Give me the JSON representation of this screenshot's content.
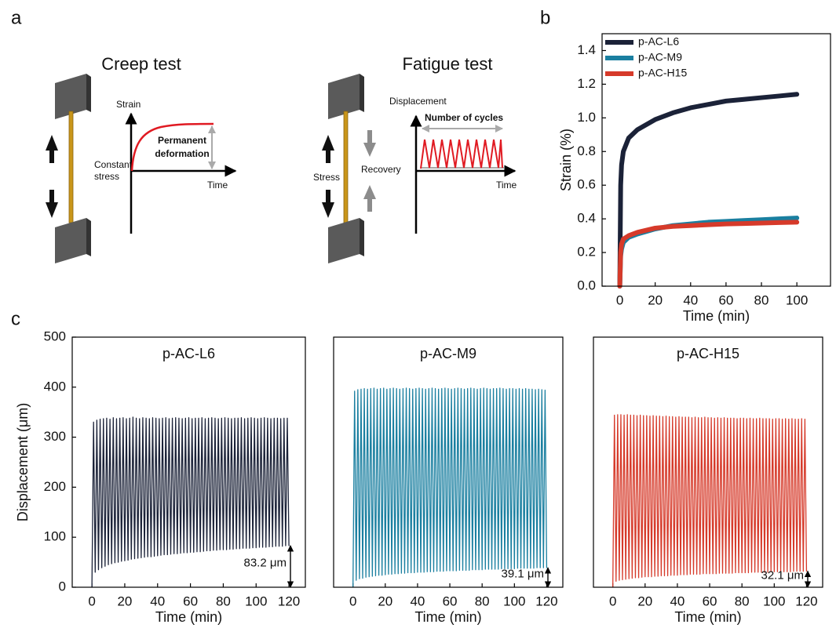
{
  "panel_labels": [
    "a",
    "b",
    "c"
  ],
  "diagram": {
    "creep": {
      "title": "Creep test",
      "y_label": "Strain",
      "x_label": "Time",
      "annotation": [
        "Permanent",
        "deformation"
      ],
      "stress": [
        "Constant",
        "stress"
      ]
    },
    "fatigue": {
      "title": "Fatigue test",
      "y_label": "Displacement",
      "x_label": "Time",
      "annotation": "Number of cycles",
      "stress": "Stress",
      "recovery": "Recovery"
    }
  },
  "chart_data": [
    {
      "type": "line",
      "x_label": "Time (min)",
      "y_label": "Strain (%)",
      "legend": "upper left",
      "xlim": [
        -10,
        119
      ],
      "xticks": [
        0,
        20,
        40,
        60,
        80,
        100
      ],
      "ylim": [
        0,
        1.5
      ],
      "yticks": [
        {
          "value": 0,
          "label": "0.0"
        },
        {
          "value": 0.2,
          "label": "0.2"
        },
        {
          "value": 0.4,
          "label": "0.4"
        },
        {
          "value": 0.6,
          "label": "0.6"
        },
        {
          "value": 0.8,
          "label": "0.8"
        },
        {
          "value": 1.0,
          "label": "1.0"
        },
        {
          "value": 1.2,
          "label": "1.2"
        },
        {
          "value": 1.4,
          "label": "1.4"
        }
      ],
      "x": [
        0,
        0.5,
        1,
        2,
        5,
        10,
        20,
        30,
        40,
        50,
        60,
        70,
        80,
        90,
        100
      ],
      "series": [
        {
          "name": "p-AC-L6",
          "color": "#1b2238",
          "values": [
            0,
            0.6,
            0.72,
            0.8,
            0.88,
            0.93,
            0.99,
            1.03,
            1.06,
            1.08,
            1.1,
            1.11,
            1.12,
            1.13,
            1.14
          ]
        },
        {
          "name": "p-AC-M9",
          "color": "#1a7fa0",
          "values": [
            0,
            0.18,
            0.22,
            0.26,
            0.29,
            0.31,
            0.34,
            0.36,
            0.37,
            0.38,
            0.385,
            0.39,
            0.395,
            0.4,
            0.405
          ]
        },
        {
          "name": "p-AC-H15",
          "color": "#d63a2a",
          "values": [
            0,
            0.2,
            0.25,
            0.28,
            0.3,
            0.32,
            0.345,
            0.355,
            0.36,
            0.365,
            0.37,
            0.372,
            0.375,
            0.378,
            0.38
          ]
        }
      ]
    },
    {
      "type": "line",
      "title": "p-AC-L6",
      "x_label": "Time (min)",
      "y_label": "Displacement (μm)",
      "color": "#1b2238",
      "xlim": [
        -12,
        130
      ],
      "xticks": [
        0,
        20,
        40,
        60,
        80,
        100,
        120
      ],
      "ylim": [
        0,
        500
      ],
      "yticks": [
        0,
        100,
        200,
        300,
        400,
        500
      ],
      "annotation": {
        "label": "83.2 μm",
        "value": 83.2
      },
      "x": [
        0,
        1,
        2,
        3,
        4,
        5,
        6,
        7,
        8,
        9,
        10,
        11,
        12,
        13,
        14,
        15,
        16,
        17,
        18,
        19,
        20,
        21,
        22,
        23,
        24,
        25,
        26,
        27,
        28,
        29,
        30,
        31,
        32,
        33,
        34,
        35,
        36,
        37,
        38,
        39,
        40,
        41,
        42,
        43,
        44,
        45,
        46,
        47,
        48,
        49,
        50,
        51,
        52,
        53,
        54,
        55,
        56,
        57,
        58,
        59,
        60,
        61,
        62,
        63,
        64,
        65,
        66,
        67,
        68,
        69,
        70,
        71,
        72,
        73,
        74,
        75,
        76,
        77,
        78,
        79,
        80,
        81,
        82,
        83,
        84,
        85,
        86,
        87,
        88,
        89,
        90,
        91,
        92,
        93,
        94,
        95,
        96,
        97,
        98,
        99,
        100,
        101,
        102,
        103,
        104,
        105,
        106,
        107,
        108,
        109,
        110,
        111,
        112,
        113,
        114,
        115,
        116,
        117,
        118,
        119,
        120
      ],
      "values": [
        0,
        330,
        30,
        334,
        35,
        336,
        39,
        337,
        42,
        338,
        45,
        336,
        47,
        339,
        49,
        337,
        50,
        338,
        52,
        339,
        53,
        337,
        54,
        338,
        56,
        340,
        57,
        338,
        58,
        337,
        59,
        339,
        60,
        338,
        61,
        337,
        61,
        339,
        62,
        338,
        63,
        337,
        64,
        338,
        65,
        339,
        65,
        337,
        66,
        338,
        67,
        339,
        67,
        338,
        68,
        337,
        69,
        338,
        69,
        339,
        70,
        337,
        70,
        338,
        71,
        338,
        71,
        339,
        72,
        337,
        73,
        338,
        73,
        339,
        74,
        338,
        74,
        337,
        75,
        338,
        75,
        339,
        75,
        338,
        76,
        337,
        76,
        338,
        77,
        338,
        77,
        339,
        78,
        337,
        78,
        338,
        78,
        339,
        79,
        338,
        79,
        337,
        80,
        338,
        80,
        339,
        80,
        338,
        81,
        337,
        81,
        338,
        82,
        338,
        82,
        337,
        82,
        338,
        83,
        338,
        83.2
      ]
    },
    {
      "type": "line",
      "title": "p-AC-M9",
      "x_label": "Time (min)",
      "color": "#1a7fa0",
      "xlim": [
        -12,
        130
      ],
      "xticks": [
        0,
        20,
        40,
        60,
        80,
        100,
        120
      ],
      "ylim": [
        0,
        500
      ],
      "annotation": {
        "label": "39.1 μm",
        "value": 39.1
      },
      "x": [
        0,
        1,
        2,
        3,
        4,
        5,
        6,
        7,
        8,
        9,
        10,
        11,
        12,
        13,
        14,
        15,
        16,
        17,
        18,
        19,
        20,
        21,
        22,
        23,
        24,
        25,
        26,
        27,
        28,
        29,
        30,
        31,
        32,
        33,
        34,
        35,
        36,
        37,
        38,
        39,
        40,
        41,
        42,
        43,
        44,
        45,
        46,
        47,
        48,
        49,
        50,
        51,
        52,
        53,
        54,
        55,
        56,
        57,
        58,
        59,
        60,
        61,
        62,
        63,
        64,
        65,
        66,
        67,
        68,
        69,
        70,
        71,
        72,
        73,
        74,
        75,
        76,
        77,
        78,
        79,
        80,
        81,
        82,
        83,
        84,
        85,
        86,
        87,
        88,
        89,
        90,
        91,
        92,
        93,
        94,
        95,
        96,
        97,
        98,
        99,
        100,
        101,
        102,
        103,
        104,
        105,
        106,
        107,
        108,
        109,
        110,
        111,
        112,
        113,
        114,
        115,
        116,
        117,
        118,
        119,
        120
      ],
      "values": [
        0,
        392,
        14,
        395,
        17,
        396,
        18,
        397,
        20,
        396,
        21,
        397,
        22,
        398,
        23,
        396,
        24,
        397,
        24,
        398,
        25,
        396,
        26,
        397,
        26,
        398,
        27,
        397,
        27,
        396,
        28,
        397,
        28,
        398,
        29,
        397,
        29,
        396,
        29,
        397,
        30,
        398,
        30,
        397,
        30,
        396,
        31,
        397,
        31,
        398,
        31,
        397,
        32,
        396,
        32,
        397,
        32,
        398,
        33,
        397,
        33,
        396,
        33,
        397,
        33,
        398,
        34,
        397,
        34,
        396,
        34,
        397,
        34,
        398,
        35,
        397,
        35,
        396,
        35,
        397,
        35,
        398,
        36,
        397,
        36,
        396,
        36,
        397,
        36,
        397,
        36,
        398,
        37,
        397,
        37,
        396,
        37,
        397,
        37,
        397,
        37,
        396,
        38,
        397,
        38,
        396,
        38,
        397,
        38,
        396,
        38,
        396,
        38,
        395,
        39,
        396,
        39,
        395,
        39,
        394,
        39.1
      ]
    },
    {
      "type": "line",
      "title": "p-AC-H15",
      "x_label": "Time (min)",
      "color": "#d63a2a",
      "xlim": [
        -12,
        130
      ],
      "xticks": [
        0,
        20,
        40,
        60,
        80,
        100,
        120
      ],
      "ylim": [
        0,
        500
      ],
      "annotation": {
        "label": "32.1 μm",
        "value": 32.1
      },
      "x": [
        0,
        1,
        2,
        3,
        4,
        5,
        6,
        7,
        8,
        9,
        10,
        11,
        12,
        13,
        14,
        15,
        16,
        17,
        18,
        19,
        20,
        21,
        22,
        23,
        24,
        25,
        26,
        27,
        28,
        29,
        30,
        31,
        32,
        33,
        34,
        35,
        36,
        37,
        38,
        39,
        40,
        41,
        42,
        43,
        44,
        45,
        46,
        47,
        48,
        49,
        50,
        51,
        52,
        53,
        54,
        55,
        56,
        57,
        58,
        59,
        60,
        61,
        62,
        63,
        64,
        65,
        66,
        67,
        68,
        69,
        70,
        71,
        72,
        73,
        74,
        75,
        76,
        77,
        78,
        79,
        80,
        81,
        82,
        83,
        84,
        85,
        86,
        87,
        88,
        89,
        90,
        91,
        92,
        93,
        94,
        95,
        96,
        97,
        98,
        99,
        100,
        101,
        102,
        103,
        104,
        105,
        106,
        107,
        108,
        109,
        110,
        111,
        112,
        113,
        114,
        115,
        116,
        117,
        118,
        119,
        120
      ],
      "values": [
        0,
        344,
        12,
        345,
        14,
        345,
        15,
        344,
        16,
        345,
        17,
        344,
        18,
        344,
        19,
        343,
        19,
        344,
        20,
        343,
        21,
        343,
        21,
        342,
        21,
        343,
        22,
        342,
        22,
        342,
        23,
        341,
        23,
        342,
        23,
        341,
        24,
        341,
        24,
        340,
        24,
        341,
        25,
        340,
        25,
        340,
        25,
        340,
        26,
        339,
        26,
        340,
        26,
        339,
        26,
        339,
        27,
        340,
        27,
        339,
        27,
        339,
        27,
        338,
        27,
        339,
        28,
        338,
        28,
        339,
        28,
        338,
        28,
        338,
        28,
        338,
        29,
        337,
        29,
        338,
        29,
        338,
        29,
        337,
        29,
        338,
        30,
        337,
        30,
        337,
        30,
        338,
        30,
        337,
        30,
        337,
        30,
        337,
        31,
        336,
        31,
        337,
        31,
        337,
        31,
        336,
        31,
        337,
        31,
        336,
        31,
        337,
        32,
        336,
        32,
        336,
        32,
        337,
        32,
        336,
        32.1
      ]
    }
  ]
}
